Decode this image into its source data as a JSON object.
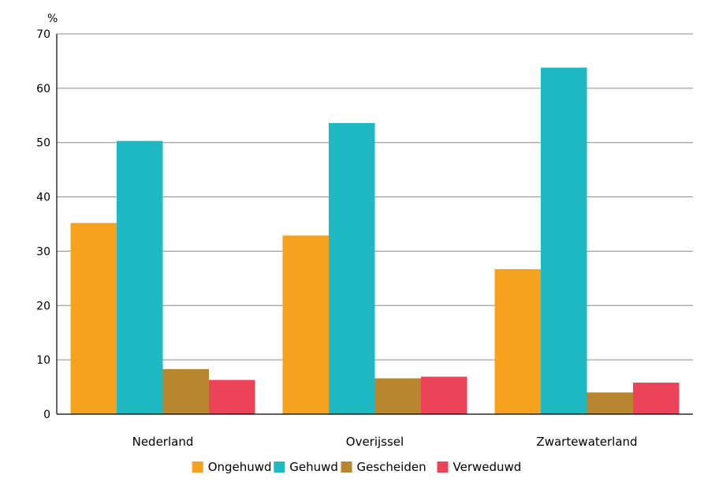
{
  "chart_data": {
    "type": "bar",
    "ylabel": "%",
    "ylim": [
      0,
      70
    ],
    "yticks": [
      0,
      10,
      20,
      30,
      40,
      50,
      60,
      70
    ],
    "grid": true,
    "legend_position": "bottom",
    "categories": [
      "Nederland",
      "Overijssel",
      "Zwartewaterland"
    ],
    "series": [
      {
        "name": "Ongehuwd",
        "color": "#f5a31e",
        "values": [
          35.2,
          32.9,
          26.7
        ]
      },
      {
        "name": "Gehuwd",
        "color": "#1fb9c3",
        "values": [
          50.3,
          53.6,
          63.8
        ]
      },
      {
        "name": "Gescheiden",
        "color": "#b7862e",
        "values": [
          8.3,
          6.6,
          4.0
        ]
      },
      {
        "name": "Verweduwd",
        "color": "#ec4358",
        "values": [
          6.3,
          6.9,
          5.8
        ]
      }
    ]
  }
}
